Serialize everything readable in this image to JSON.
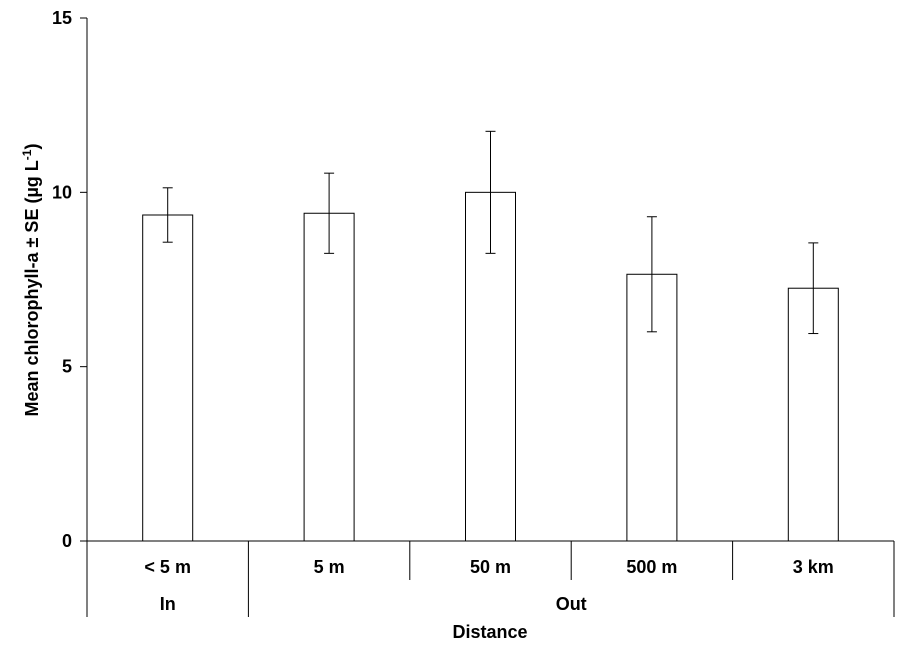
{
  "chart_data": {
    "type": "bar",
    "categories": [
      "< 5 m",
      "5 m",
      "50 m",
      "500 m",
      "3 km"
    ],
    "groups": [
      {
        "label": "In",
        "categories": [
          "< 5 m"
        ]
      },
      {
        "label": "Out",
        "categories": [
          "5 m",
          "50 m",
          "500 m",
          "3 km"
        ]
      }
    ],
    "values": [
      9.35,
      9.4,
      10.0,
      7.65,
      7.25
    ],
    "errors": [
      0.78,
      1.15,
      1.75,
      1.65,
      1.3
    ],
    "xlabel": "Distance",
    "ylabel_parts": [
      "Mean chlorophyll-a ± SE (µg L",
      "-1",
      ")"
    ],
    "ylim": [
      0,
      15
    ],
    "yticks": [
      0,
      5,
      10,
      15
    ],
    "grid": false,
    "legend": "none",
    "bar_fill": "#ffffff",
    "bar_stroke": "#000000"
  }
}
